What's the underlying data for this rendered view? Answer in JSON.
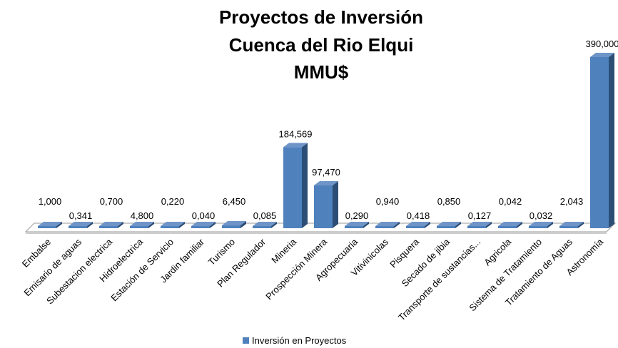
{
  "chart_data": {
    "type": "bar3d",
    "title": [
      "Proyectos de Inversión",
      "Cuenca del Rio Elqui",
      "MMU$"
    ],
    "categories": [
      "Embalse",
      "Emisario de aguas",
      "Subestacion electrica",
      "Hidroelectrica",
      "Estación de Servicio",
      "Jardin familiar",
      "Turismo",
      "Plan Regulador",
      "Mineria",
      "Prospección Minera",
      "Agropecuaria",
      "Vitivinicolas",
      "Pisquera",
      "Secado de jibia",
      "Transporte de sustancias...",
      "Agricola",
      "Sistema de Tratamiento",
      "Tratamiento de Aguas",
      "Astronomía"
    ],
    "series": [
      {
        "name": "Inversión en Proyectos",
        "color": "#4f81bd",
        "values": [
          1.0,
          0.341,
          0.7,
          4.8,
          0.22,
          0.04,
          6.45,
          0.085,
          184.569,
          97.47,
          0.29,
          0.94,
          0.418,
          0.85,
          0.127,
          0.042,
          0.032,
          2.043,
          390.0
        ],
        "value_labels": [
          "1,000",
          "0,341",
          "0,700",
          "4,800",
          "0,220",
          "0,040",
          "6,450",
          "0,085",
          "184,569",
          "97,470",
          "0,290",
          "0,940",
          "0,418",
          "0,850",
          "0,127",
          "0,042",
          "0,032",
          "2,043",
          "390,000"
        ]
      }
    ],
    "legend": "bottom"
  }
}
